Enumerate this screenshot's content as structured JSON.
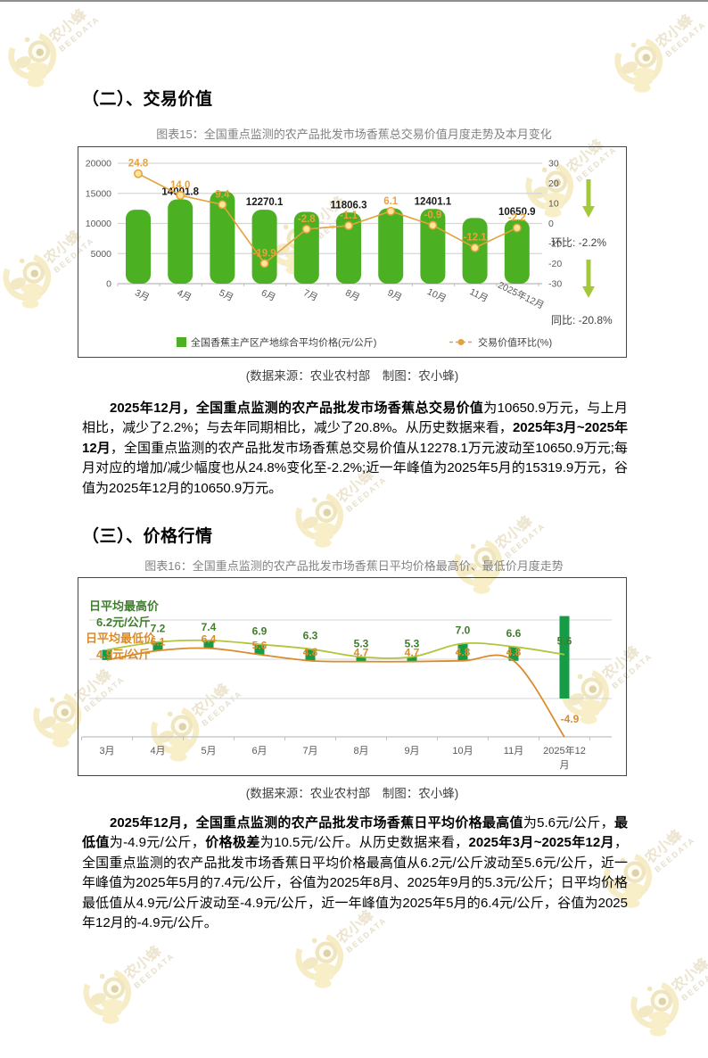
{
  "page": {
    "section2_heading": "（二）、交易价值",
    "section3_heading": "（三）、价格行情",
    "fig15_title": "图表15：全国重点监测的农产品批发市场香蕉总交易价值月度走势及本月变化",
    "fig16_title": "图表16：全国重点监测的农产品批发市场香蕉日平均价格最高价、最低价月度走势",
    "source_caption_1": "(数据来源：农业农村部　制图：农小蜂)",
    "source_caption_2": "(数据来源：农业农村部　制图：农小蜂)"
  },
  "watermark": {
    "brand_cn": "农小蜂",
    "brand_en": "BEEDATA"
  },
  "paragraph1_runs": [
    {
      "t": "2025年12月，全国重点监测的农产品批发市场香蕉总交易价值",
      "b": true
    },
    {
      "t": "为10650.9万元，与上月相比，减少了2.2%；与去年同期相比，减少了20.8%。从历史数据来看，",
      "b": false
    },
    {
      "t": "2025年3月~2025年12月",
      "b": true
    },
    {
      "t": "，全国重点监测的农产品批发市场香蕉总交易价值从12278.1万元波动至10650.9万元;每月对应的增加/减少幅度也从24.8%变化至-2.2%;近一年峰值为2025年5月的15319.9万元，谷值为2025年12月的10650.9万元。",
      "b": false
    }
  ],
  "paragraph2_runs": [
    {
      "t": "2025年12月，全国重点监测的农产品批发市场香蕉日平均价格最高值",
      "b": true
    },
    {
      "t": "为5.6元/公斤，",
      "b": false
    },
    {
      "t": "最低值",
      "b": true
    },
    {
      "t": "为-4.9元/公斤，",
      "b": false
    },
    {
      "t": "价格极差",
      "b": true
    },
    {
      "t": "为10.5元/公斤。从历史数据来看，",
      "b": false
    },
    {
      "t": "2025年3月~2025年12月",
      "b": true
    },
    {
      "t": "，全国重点监测的农产品批发市场香蕉日平均价格最高值从6.2元/公斤波动至5.6元/公斤，近一年峰值为2025年5月的7.4元/公斤，谷值为2025年8月、2025年9月的5.3元/公斤；日平均价格最低值从4.9元/公斤波动至-4.9元/公斤，近一年峰值为2025年5月的6.4元/公斤，谷值为2025年12月的-4.9元/公斤。",
      "b": false
    }
  ],
  "chart_data": [
    {
      "type": "bar",
      "title": "图表15：全国重点监测的农产品批发市场香蕉总交易价值月度走势及本月变化",
      "categories": [
        "3月",
        "4月",
        "5月",
        "6月",
        "7月",
        "8月",
        "9月",
        "10月",
        "11月",
        "2025年12月"
      ],
      "series": [
        {
          "name": "全国香蕉主产区产地综合平均价格(元/公斤)",
          "type": "bar",
          "values": [
            12278.1,
            14001.8,
            15319.9,
            12270.1,
            11926.5,
            11806.3,
            12526.5,
            12401.1,
            10900.6,
            10650.9
          ],
          "data_labels": [
            null,
            "14001.8",
            null,
            "12270.1",
            null,
            "11806.3",
            null,
            "12401.1",
            null,
            "10650.9"
          ]
        },
        {
          "name": "交易价值环比(%)",
          "type": "line",
          "values": [
            24.8,
            14.0,
            9.4,
            -19.9,
            -2.8,
            -1.1,
            6.1,
            -0.9,
            -12.1,
            -2.2
          ],
          "data_labels": [
            "24.8",
            "14.0",
            "9.4",
            "-19.9",
            "-2.8",
            "-1.1",
            "6.1",
            "-0.9",
            "-12.1",
            "-2.2"
          ]
        }
      ],
      "left_axis": {
        "ticks": [
          0,
          5000,
          10000,
          15000,
          20000
        ],
        "max": 20000
      },
      "right_axis": {
        "ticks": [
          30,
          20,
          10,
          0,
          -10,
          -20,
          -30
        ],
        "max": 30
      },
      "side_panel": {
        "mom_label": "环比:",
        "mom_value": "-2.2%",
        "yoy_label": "同比:",
        "yoy_value": "-20.8%"
      },
      "legend_position": "bottom",
      "grid": "on"
    },
    {
      "type": "line",
      "title": "图表16：全国重点监测的农产品批发市场香蕉日平均价格最高价、最低价月度走势",
      "categories": [
        "3月",
        "4月",
        "5月",
        "6月",
        "7月",
        "8月",
        "9月",
        "10月",
        "11月",
        "2025年12月"
      ],
      "series": [
        {
          "name": "日平均最高价",
          "type": "line",
          "values": [
            6.2,
            7.2,
            7.4,
            6.9,
            6.3,
            5.3,
            5.3,
            7.0,
            6.6,
            5.6
          ],
          "data_labels": [
            null,
            "7.2",
            "7.4",
            "6.9",
            "6.3",
            "5.3",
            "5.3",
            "7.0",
            "6.6",
            "5.6"
          ]
        },
        {
          "name": "日平均最低价",
          "type": "line",
          "values": [
            4.9,
            6.1,
            6.4,
            5.6,
            4.8,
            4.7,
            4.7,
            4.8,
            4.8,
            -4.9
          ],
          "data_labels": [
            null,
            "6.1",
            "6.4",
            "5.6",
            "4.8",
            "4.7",
            "4.7",
            "4.8",
            "4.8",
            "-4.9"
          ]
        }
      ],
      "range_bars": true,
      "annotation_high": [
        "日平均最高价",
        "6.2元/公斤"
      ],
      "annotation_low": [
        "日平均最低价",
        "4.9元/公斤"
      ],
      "ylim": [
        -5,
        10.5
      ],
      "grid_values": [
        10,
        5,
        0
      ],
      "legend_position": "none"
    }
  ],
  "colors": {
    "bar_green": "#4CB122",
    "bar2_green": "#169B46",
    "line_gold": "#E2A23C",
    "marker_fill": "#FFE49B",
    "label_orange": "#E9A23C",
    "arrow_green": "#A3C93B",
    "high_line": "#B3C43D",
    "high_label": "#3E7E2D",
    "low_line": "#D98C2B",
    "grid": "#D6D6D6",
    "axis": "#BFBFBF",
    "axis_text": "#595959",
    "bar_label": "#1A1A1A",
    "legend_text": "#404040",
    "panel_text": "#404040"
  }
}
